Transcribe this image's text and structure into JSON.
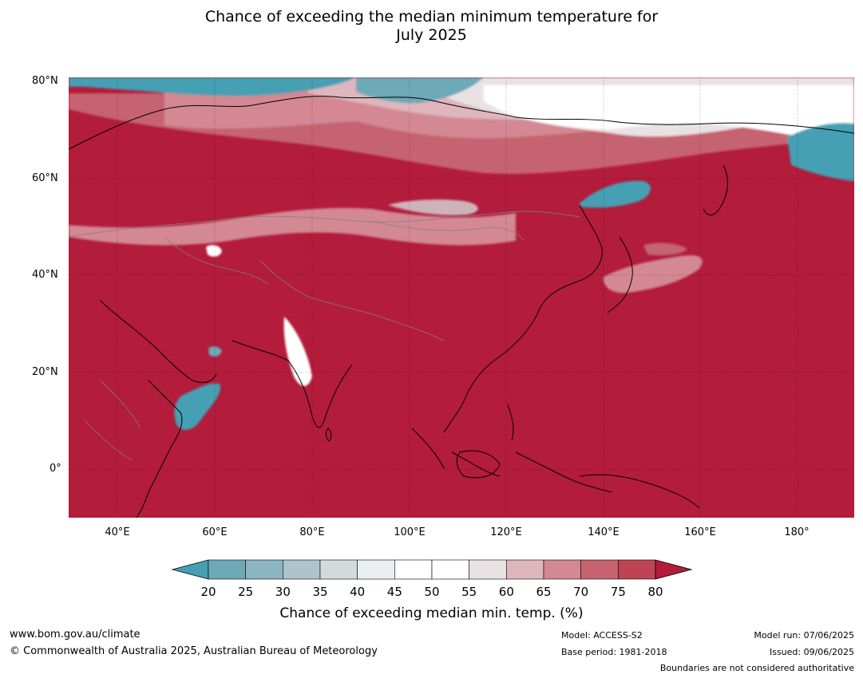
{
  "title_line1": "Chance of exceeding the median minimum temperature for",
  "title_line2": "July 2025",
  "map": {
    "lat_labels": [
      "80°N",
      "60°N",
      "40°N",
      "20°N",
      "0°"
    ],
    "lon_labels": [
      "40°E",
      "60°E",
      "80°E",
      "100°E",
      "120°E",
      "140°E",
      "160°E",
      "180°"
    ],
    "colors": {
      "ocean_dominant": "#b31c3b",
      "cool": "#45a0b3",
      "neutral": "#ffffff",
      "border": "#808080",
      "coast": "#000000"
    }
  },
  "colorbar": {
    "ticks": [
      "20",
      "25",
      "30",
      "35",
      "40",
      "45",
      "50",
      "55",
      "60",
      "65",
      "70",
      "75",
      "80"
    ],
    "colors": [
      "#45a0b3",
      "#6da9b7",
      "#8cb5c3",
      "#adc4cb",
      "#d4dadc",
      "#ebeff1",
      "#ffffff",
      "#ffffff",
      "#e9e2e4",
      "#dfb6bd",
      "#d38893",
      "#c6636f",
      "#bf4453",
      "#b31c3b"
    ],
    "label": "Chance of exceeding median min. temp. (%)"
  },
  "footer": {
    "website": "www.bom.gov.au/climate",
    "copyright": "© Commonwealth of Australia 2025, Australian Bureau of Meteorology",
    "model": "Model: ACCESS-S2",
    "base_period": "Base period: 1981-2018",
    "model_run": "Model run: 07/06/2025",
    "issued": "Issued: 09/06/2025",
    "disclaimer": "Boundaries are not considered authoritative"
  }
}
